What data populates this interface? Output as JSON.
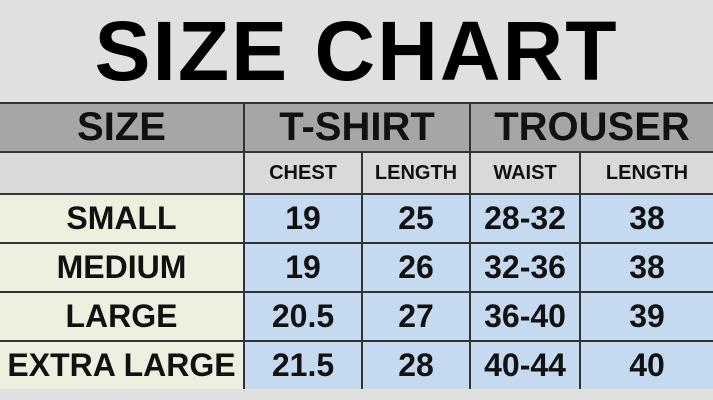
{
  "title": "SIZE CHART",
  "header": {
    "size": "SIZE",
    "tshirt": "T-SHIRT",
    "trouser": "TROUSER"
  },
  "subheader": [
    "CHEST",
    "LENGTH",
    "WAIST",
    "LENGTH"
  ],
  "rows": [
    {
      "size": "SMALL",
      "chest": "19",
      "tlength": "25",
      "waist": "28-32",
      "plength": "38"
    },
    {
      "size": "MEDIUM",
      "chest": "19",
      "tlength": "26",
      "waist": "32-36",
      "plength": "38"
    },
    {
      "size": "LARGE",
      "chest": "20.5",
      "tlength": "27",
      "waist": "36-40",
      "plength": "39"
    },
    {
      "size": "EXTRA LARGE",
      "chest": "21.5",
      "tlength": "28",
      "waist": "40-44",
      "plength": "40"
    }
  ],
  "colors": {
    "header": "#a6a6a6",
    "subheader": "#d9d9d9",
    "size_column": "#ebf1de",
    "data_cells": "#c5d9f1"
  }
}
